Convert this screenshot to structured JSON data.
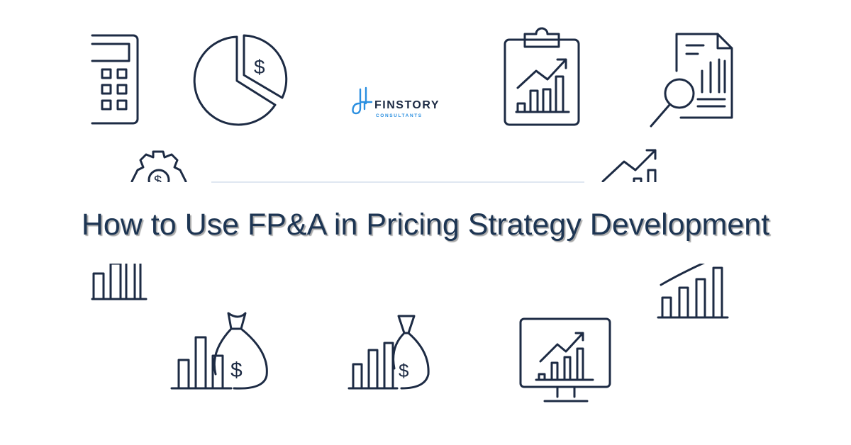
{
  "title": "How to Use FP&A in Pricing Strategy Development",
  "logo": {
    "name": "FINSTORY",
    "subtitle": "CONSULTANTS",
    "accent_color": "#2b8fe0"
  },
  "colors": {
    "icon_stroke": "#1d2b44",
    "title": "#1d3553",
    "divider": "#dfe7f1"
  },
  "icons": [
    "calculator-icon",
    "pie-chart-dollar-icon",
    "clipboard-chart-icon",
    "document-magnifier-icon",
    "gear-dollar-icon",
    "trend-arrow-icon",
    "bar-chart-icon",
    "growth-bar-chart-icon",
    "money-bag-chart-icon",
    "money-bag-chart-small-icon",
    "monitor-chart-icon"
  ]
}
